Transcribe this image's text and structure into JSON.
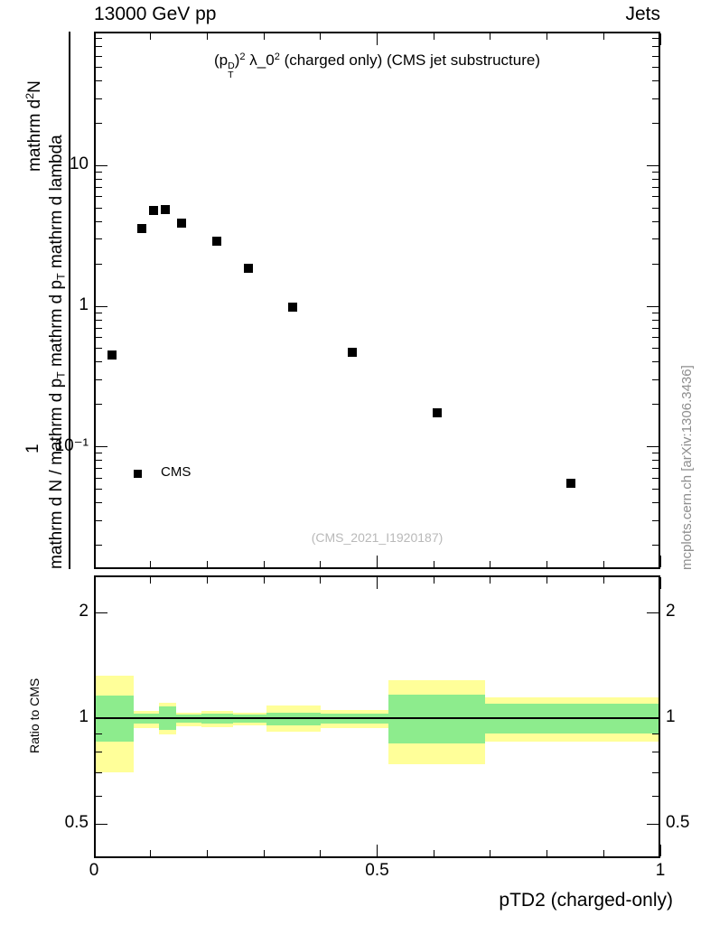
{
  "header": {
    "left": "13000 GeV pp",
    "right": "Jets"
  },
  "watermark": "(CMS_2021_I1920187)",
  "side_note": "mcplots.cern.ch [arXiv:1306.3436]",
  "legend": {
    "label": "CMS"
  },
  "title_segments": [
    {
      "s": "n",
      "t": "(p"
    },
    {
      "s": "stack",
      "top": "D",
      "bot": "T"
    },
    {
      "s": "n",
      "t": ")"
    },
    {
      "s": "sup",
      "t": "2"
    },
    {
      "s": "n",
      "t": " λ_0"
    },
    {
      "s": "sup",
      "t": "2"
    },
    {
      "s": "n",
      "t": " (charged only) (CMS jet substructure)"
    }
  ],
  "ylabel_main": {
    "one": "1",
    "numerator_segments": [
      {
        "s": "n",
        "t": "mathrm d"
      },
      {
        "s": "sup",
        "t": "2"
      },
      {
        "s": "n",
        "t": "N"
      }
    ],
    "denominator_segments": [
      {
        "s": "n",
        "t": "mathrm d N / mathrm d p"
      },
      {
        "s": "sub",
        "t": "T"
      },
      {
        "s": "n",
        "t": " mathrm d p"
      },
      {
        "s": "sub",
        "t": "T"
      },
      {
        "s": "n",
        "t": " mathrm d lambda"
      }
    ]
  },
  "colors": {
    "yellow_band": "#ffff99",
    "green_band": "#8dec8d",
    "marker": "#000000",
    "watermark_gray": "#b9b9b9",
    "side_note_gray": "#8e8e8e",
    "frame": "#000000"
  },
  "chart_data": {
    "type": "scatter",
    "title": "(p_T^D)^2 λ_0^2 (charged only) (CMS jet substructure)",
    "xlabel": "pTD2 (charged-only)",
    "ylabel": "1/(mathrm d N/mathrm d p_T) mathrm d^2N/(mathrm d p_T mathrm d lambda)",
    "x_range": [
      0,
      1
    ],
    "y_range_main": [
      0.0135,
      90
    ],
    "y_scale": "log",
    "x_ticks": {
      "major": [
        0,
        0.5,
        1
      ],
      "labels": [
        "0",
        "0.5",
        "1"
      ],
      "minor_step": 0.1
    },
    "y_ticks_main": {
      "major": [
        10,
        1,
        0.1
      ],
      "labels": [
        "10",
        "1",
        "10⁻¹"
      ]
    },
    "series": [
      {
        "name": "CMS",
        "marker": "filled-square",
        "color": "#000000",
        "points": [
          [
            0.032,
            0.45
          ],
          [
            0.085,
            3.6
          ],
          [
            0.105,
            4.8
          ],
          [
            0.126,
            4.85
          ],
          [
            0.155,
            3.9
          ],
          [
            0.217,
            2.9
          ],
          [
            0.273,
            1.86
          ],
          [
            0.351,
            0.99
          ],
          [
            0.456,
            0.47
          ],
          [
            0.606,
            0.175
          ],
          [
            0.842,
            0.055
          ]
        ]
      }
    ],
    "ratio_panel": {
      "ylabel": "Ratio to CMS",
      "y_range": [
        0.4,
        2.55
      ],
      "y_scale": "log",
      "y_ticks": {
        "major": [
          2,
          1,
          0.5
        ],
        "labels": [
          "2",
          "1",
          "0.5"
        ],
        "minor": [
          0.9,
          0.8,
          0.7,
          0.6
        ]
      },
      "reference_line": 1,
      "bands": [
        {
          "x0": 0.0,
          "x1": 0.07,
          "yellow": [
            0.7,
            1.32
          ],
          "green": [
            0.86,
            1.16
          ]
        },
        {
          "x0": 0.07,
          "x1": 0.115,
          "yellow": [
            0.94,
            1.05
          ],
          "green": [
            0.965,
            1.03
          ]
        },
        {
          "x0": 0.115,
          "x1": 0.145,
          "yellow": [
            0.9,
            1.11
          ],
          "green": [
            0.925,
            1.08
          ]
        },
        {
          "x0": 0.145,
          "x1": 0.19,
          "yellow": [
            0.95,
            1.04
          ],
          "green": [
            0.97,
            1.025
          ]
        },
        {
          "x0": 0.19,
          "x1": 0.245,
          "yellow": [
            0.945,
            1.05
          ],
          "green": [
            0.965,
            1.03
          ]
        },
        {
          "x0": 0.245,
          "x1": 0.305,
          "yellow": [
            0.955,
            1.04
          ],
          "green": [
            0.97,
            1.025
          ]
        },
        {
          "x0": 0.305,
          "x1": 0.4,
          "yellow": [
            0.915,
            1.09
          ],
          "green": [
            0.955,
            1.04
          ]
        },
        {
          "x0": 0.4,
          "x1": 0.52,
          "yellow": [
            0.94,
            1.055
          ],
          "green": [
            0.965,
            1.03
          ]
        },
        {
          "x0": 0.52,
          "x1": 0.69,
          "yellow": [
            0.74,
            1.28
          ],
          "green": [
            0.85,
            1.17
          ]
        },
        {
          "x0": 0.69,
          "x1": 1.0,
          "yellow": [
            0.857,
            1.15
          ],
          "green": [
            0.904,
            1.1
          ]
        }
      ]
    }
  }
}
